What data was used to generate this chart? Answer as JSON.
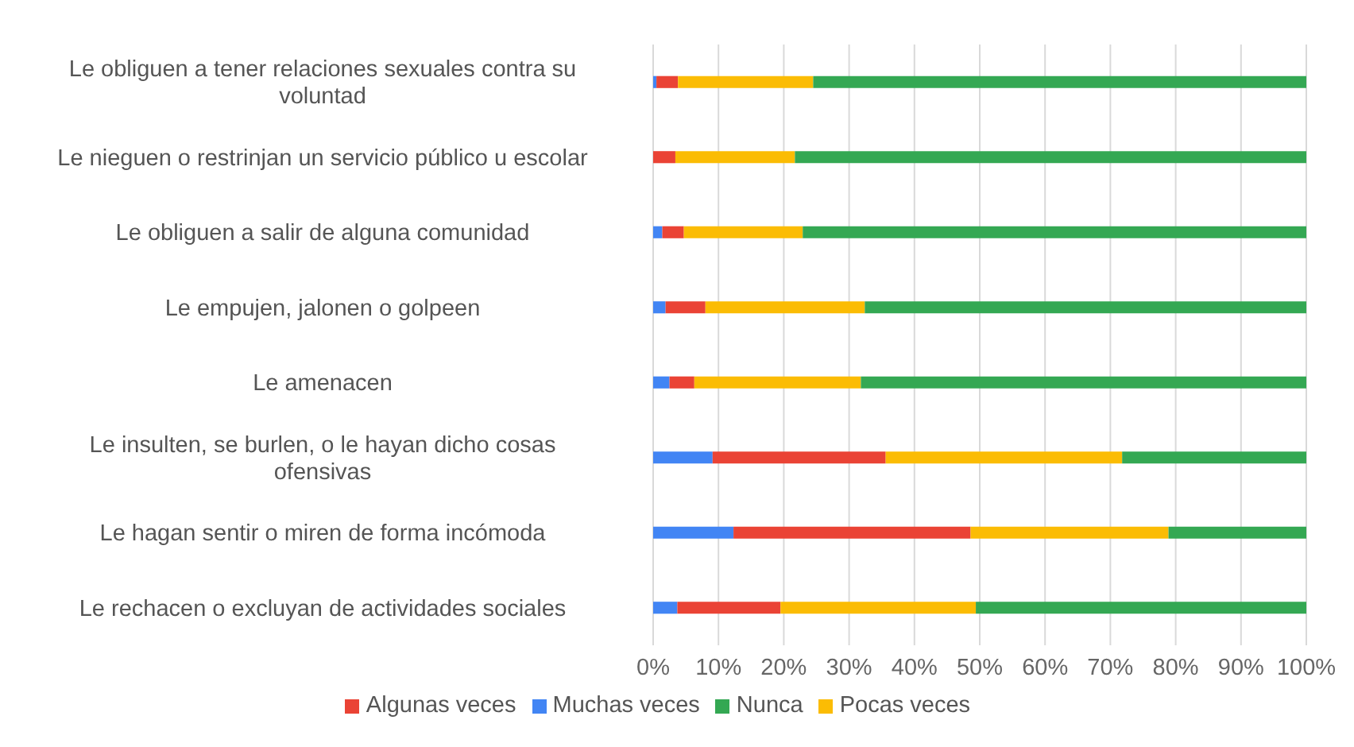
{
  "chart_data": {
    "type": "bar",
    "orientation": "horizontal",
    "stacked": true,
    "categories": [
      "Le obliguen a tener relaciones sexuales contra su voluntad",
      "Le nieguen o restrinjan un servicio público u escolar",
      "Le obliguen a salir de alguna comunidad",
      "Le empujen, jalonen o golpeen",
      "Le amenacen",
      "Le insulten, se burlen, o le hayan dicho cosas ofensivas",
      "Le hagan sentir o miren de forma incómoda",
      "Le rechacen o excluyan de actividades sociales"
    ],
    "series": [
      {
        "name": "Muchas veces",
        "color": "#4285f4",
        "values": [
          0.5,
          0,
          1.4,
          1.9,
          2.5,
          9.1,
          12.3,
          3.7
        ]
      },
      {
        "name": "Algunas veces",
        "color": "#ea4335",
        "values": [
          3.3,
          3.4,
          3.3,
          6.1,
          3.8,
          26.5,
          36.3,
          15.8
        ]
      },
      {
        "name": "Pocas veces",
        "color": "#fbbc04",
        "values": [
          20.7,
          18.3,
          18.2,
          24.4,
          25.5,
          36.2,
          30.3,
          29.9
        ]
      },
      {
        "name": "Nunca",
        "color": "#34a853",
        "values": [
          75.5,
          78.3,
          77.1,
          67.6,
          68.2,
          28.2,
          21.1,
          50.6
        ]
      }
    ],
    "xlim": [
      0,
      100
    ],
    "xticks": [
      {
        "value": 0,
        "label": "0%"
      },
      {
        "value": 10,
        "label": "10%"
      },
      {
        "value": 20,
        "label": "20%"
      },
      {
        "value": 30,
        "label": "30%"
      },
      {
        "value": 40,
        "label": "40%"
      },
      {
        "value": 50,
        "label": "50%"
      },
      {
        "value": 60,
        "label": "60%"
      },
      {
        "value": 70,
        "label": "70%"
      },
      {
        "value": 80,
        "label": "80%"
      },
      {
        "value": 90,
        "label": "90%"
      },
      {
        "value": 100,
        "label": "100%"
      }
    ],
    "grid": "x",
    "legend": "bottom"
  }
}
